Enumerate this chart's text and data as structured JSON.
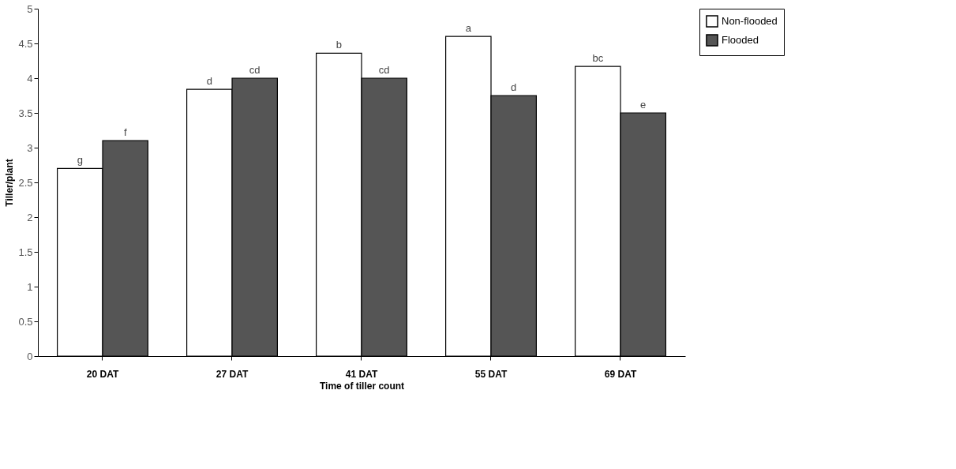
{
  "chart_data": {
    "type": "bar",
    "xlabel": "Time of tiller count",
    "ylabel": "Tiller/plant",
    "categories": [
      "20 DAT",
      "27 DAT",
      "41 DAT",
      "55 DAT",
      "69 DAT"
    ],
    "series": [
      {
        "name": "Non-flooded",
        "color": "#ffffff",
        "values": [
          2.7,
          3.84,
          4.36,
          4.6,
          4.17
        ],
        "value_labels": [
          "g",
          "d",
          "b",
          "a",
          "bc"
        ]
      },
      {
        "name": "Flooded",
        "color": "#555555",
        "values": [
          3.1,
          4.0,
          4.0,
          3.75,
          3.5
        ],
        "value_labels": [
          "f",
          "cd",
          "cd",
          "d",
          "e"
        ]
      }
    ],
    "ylim": [
      0,
      5
    ],
    "yticks": [
      0,
      0.5,
      1,
      1.5,
      2,
      2.5,
      3,
      3.5,
      4,
      4.5,
      5
    ],
    "grid": false,
    "legend": "right"
  }
}
